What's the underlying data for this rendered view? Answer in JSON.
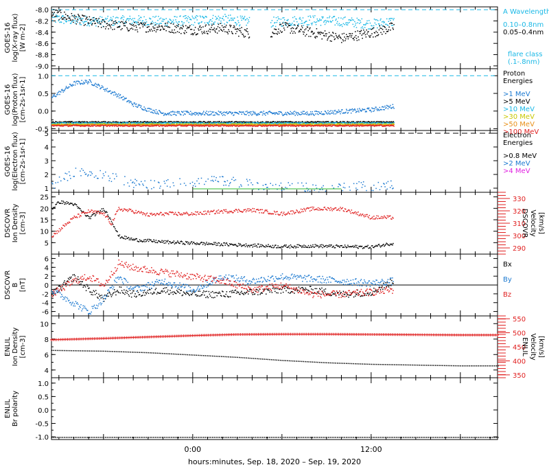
{
  "x_axis": {
    "label": "hours:minutes, Sep. 18, 2020 – Sep. 19, 2020",
    "ticks": [
      "0:00",
      "12:00"
    ],
    "tick_hours": [
      0,
      12
    ],
    "range_hours": [
      -9.5,
      20.5
    ]
  },
  "colors": {
    "black": "#000000",
    "blue": "#1a78d0",
    "cyan": "#19b8e6",
    "green": "#2eb82e",
    "yellow": "#c8c800",
    "orange": "#e89018",
    "red": "#e02020",
    "magenta": "#e020e0"
  },
  "panels": [
    {
      "id": "xray",
      "ylabel": [
        "GOES-16",
        "log(X-ray flux)",
        "[W m-2]"
      ],
      "yticks": [
        "-8.0",
        "-8.2",
        "-8.4",
        "-8.6",
        "-8.8",
        "-9.0"
      ],
      "ytick_values": [
        -8.0,
        -8.2,
        -8.4,
        -8.6,
        -8.8,
        -9.0
      ],
      "ylim": [
        -9.05,
        -7.95
      ],
      "legend_title": [
        "A Wavelength"
      ],
      "legend": [
        {
          "text": "0.10–0.8nm",
          "color": "cyan"
        },
        {
          "text": "0.05–0.4nm",
          "color": "black"
        }
      ],
      "legend2": [
        {
          "text": "flare class",
          "color": "cyan"
        },
        {
          "text": "(.1-.8nm)",
          "color": "cyan"
        }
      ],
      "hline": {
        "value": -8.0,
        "color": "cyan"
      }
    },
    {
      "id": "proton",
      "ylabel": [
        "GOES-16",
        "log(Proton flux)",
        "[cm-2s-1sr-1]"
      ],
      "yticks": [
        "1.0",
        "0.5",
        "0.0",
        "-0.5"
      ],
      "ytick_values": [
        1.0,
        0.5,
        0.0,
        -0.5
      ],
      "ylim": [
        -0.55,
        1.2
      ],
      "legend_title": [
        "Proton",
        "Energies"
      ],
      "legend": [
        {
          "text": ">1 MeV",
          "color": "blue"
        },
        {
          "text": ">5 MeV",
          "color": "black"
        },
        {
          "text": ">10 MeV",
          "color": "cyan"
        },
        {
          "text": ">30 MeV",
          "color": "yellow"
        },
        {
          "text": ">50 MeV",
          "color": "orange"
        },
        {
          "text": ">100 MeV",
          "color": "red"
        }
      ],
      "hline": {
        "value": 1.0,
        "color": "cyan"
      }
    },
    {
      "id": "electron",
      "ylabel": [
        "GOES-16",
        "log(Electron flux)",
        "[cm-2s-1sr-1]"
      ],
      "yticks": [
        "5",
        "4",
        "3",
        "2",
        "1"
      ],
      "ytick_values": [
        5,
        4,
        3,
        2,
        1
      ],
      "ylim": [
        0.7,
        5.2
      ],
      "legend_title": [
        "Electron",
        "Energies"
      ],
      "legend": [
        {
          "text": ">0.8 MeV",
          "color": "black"
        },
        {
          "text": ">2 MeV",
          "color": "blue"
        },
        {
          "text": ">4 MeV",
          "color": "magenta"
        }
      ],
      "hline": {
        "value": 5.0,
        "color": "black"
      }
    },
    {
      "id": "dscovr_density",
      "ylabel": [
        "DSCOVR",
        "Ion Density",
        "[cm-3]"
      ],
      "yticks": [
        "25",
        "20",
        "15",
        "10",
        "5"
      ],
      "ytick_values": [
        25,
        20,
        15,
        10,
        5
      ],
      "ylim": [
        0,
        27
      ],
      "ylabel_right": [
        "DSCOVR",
        "Velocity",
        "[km/s]"
      ],
      "yticks_right": [
        "330",
        "320",
        "310",
        "300",
        "290"
      ],
      "ytick_right_values": [
        330,
        320,
        310,
        300,
        290
      ],
      "ylim_right": [
        285,
        335
      ]
    },
    {
      "id": "dscovr_b",
      "ylabel": [
        "DSCOVR",
        "B",
        "[nT]"
      ],
      "yticks": [
        "6",
        "4",
        "2",
        "0",
        "-2",
        "-4",
        "-6"
      ],
      "ytick_values": [
        6,
        4,
        2,
        0,
        -2,
        -4,
        -6
      ],
      "ylim": [
        -7,
        7
      ],
      "legend": [
        {
          "text": "Bx",
          "color": "black"
        },
        {
          "text": "By",
          "color": "blue"
        },
        {
          "text": "Bz",
          "color": "red"
        }
      ],
      "hline": {
        "value": 0,
        "color": "black"
      }
    },
    {
      "id": "enlil_density",
      "ylabel": [
        "ENLIL",
        "Ion Density",
        "[cm-3]"
      ],
      "yticks": [
        "10",
        "8",
        "6",
        "4"
      ],
      "ytick_values": [
        10,
        8,
        6,
        4
      ],
      "ylim": [
        3,
        11
      ],
      "ylabel_right": [
        "ENLIL",
        "Velocity",
        "[km/s]"
      ],
      "yticks_right": [
        "550",
        "500",
        "450",
        "400",
        "350"
      ],
      "ytick_right_values": [
        550,
        500,
        450,
        400,
        350
      ],
      "ylim_right": [
        340,
        560
      ]
    },
    {
      "id": "enlil_polarity",
      "ylabel": [
        "ENLIL",
        "Br polarity"
      ],
      "yticks": [
        "1.0",
        "0.5",
        "0.0",
        "-0.5",
        "-1.0"
      ],
      "ytick_values": [
        1.0,
        0.5,
        0.0,
        -0.5,
        -1.0
      ],
      "ylim": [
        -1.1,
        1.2
      ]
    }
  ],
  "chart_data": [
    {
      "type": "scatter",
      "title": "",
      "ylabel": "GOES-16 log(X-ray flux) [W m-2]",
      "ylim": [
        -9.05,
        -7.95
      ],
      "series": [
        {
          "name": "0.10–0.8nm",
          "color": "cyan",
          "x": [
            -9.5,
            -8,
            -6,
            -4,
            -2,
            0,
            2,
            3.5,
            5,
            6,
            8,
            10,
            12,
            13.5
          ],
          "y": [
            -8.15,
            -8.18,
            -8.2,
            -8.18,
            -8.2,
            -8.18,
            -8.16,
            -8.2,
            -8.22,
            -8.2,
            -8.18,
            -8.2,
            -8.25,
            -8.2
          ]
        },
        {
          "name": "0.05–0.4nm",
          "color": "black",
          "x": [
            -9.5,
            -8,
            -6,
            -4,
            -2,
            0,
            2,
            3.5,
            5,
            6,
            8,
            10,
            12,
            13.5
          ],
          "y": [
            -8.05,
            -8.15,
            -8.25,
            -8.3,
            -8.3,
            -8.35,
            -8.32,
            -8.4,
            -8.45,
            -8.3,
            -8.4,
            -8.5,
            -8.4,
            -8.3
          ]
        }
      ]
    },
    {
      "type": "scatter",
      "title": "",
      "ylabel": "GOES-16 log(Proton flux) [cm-2s-1sr-1]",
      "ylim": [
        -0.55,
        1.2
      ],
      "series": [
        {
          "name": ">1 MeV",
          "color": "blue",
          "x": [
            -9.5,
            -8,
            -7,
            -6,
            -5,
            -4,
            -3,
            -2,
            0,
            2,
            4,
            6,
            8,
            10,
            12,
            13.5
          ],
          "y": [
            0.4,
            0.8,
            0.85,
            0.65,
            0.45,
            0.2,
            0.05,
            -0.05,
            -0.05,
            -0.05,
            -0.05,
            -0.05,
            -0.05,
            0,
            0.05,
            0.15
          ]
        },
        {
          "name": ">5 MeV",
          "color": "black",
          "x": [
            -9.5,
            0,
            13.5
          ],
          "y": [
            -0.3,
            -0.3,
            -0.3
          ]
        },
        {
          "name": ">10 MeV",
          "color": "cyan",
          "x": [
            -9.5,
            0,
            13.5
          ],
          "y": [
            -0.33,
            -0.33,
            -0.33
          ]
        },
        {
          "name": ">30 MeV",
          "color": "yellow",
          "x": [
            -9.5,
            0,
            13.5
          ],
          "y": [
            -0.36,
            -0.36,
            -0.36
          ]
        },
        {
          "name": ">50 MeV",
          "color": "orange",
          "x": [
            -9.5,
            0,
            13.5
          ],
          "y": [
            -0.38,
            -0.38,
            -0.38
          ]
        },
        {
          "name": ">100 MeV",
          "color": "red",
          "x": [
            -9.5,
            0,
            13.5
          ],
          "y": [
            -0.4,
            -0.4,
            -0.4
          ]
        }
      ]
    },
    {
      "type": "scatter",
      "title": "",
      "ylabel": "GOES-16 log(Electron flux) [cm-2s-1sr-1]",
      "ylim": [
        0.7,
        5.2
      ],
      "series": [
        {
          "name": ">0.8 MeV",
          "color": "black",
          "x": [],
          "y": []
        },
        {
          "name": ">2 MeV",
          "color": "blue",
          "x": [
            -9.5,
            -8,
            -6,
            -4,
            -2,
            0,
            2,
            4,
            6,
            8,
            10,
            12,
            13.5
          ],
          "y": [
            1.2,
            2.2,
            2.0,
            1.4,
            1.3,
            1.5,
            1.6,
            1.3,
            1.2,
            1.1,
            1.1,
            1.2,
            1.3
          ]
        },
        {
          "name": ">4 MeV",
          "color": "magenta",
          "x": [],
          "y": []
        }
      ]
    },
    {
      "type": "line",
      "title": "",
      "ylabel": "DSCOVR Ion Density [cm-3]",
      "ylim": [
        0,
        27
      ],
      "series": [
        {
          "name": "Ion Density",
          "color": "black",
          "x": [
            -9.5,
            -9,
            -8,
            -7,
            -6,
            -5.5,
            -5,
            -4,
            -3,
            -2,
            0,
            2,
            4,
            6,
            8,
            10,
            12,
            13.5
          ],
          "y": [
            20,
            23,
            22,
            16,
            20,
            15,
            8,
            6.5,
            6,
            5.5,
            5,
            4.5,
            4,
            3.5,
            3.8,
            3.5,
            3.3,
            5
          ]
        },
        {
          "name": "Velocity",
          "color": "red",
          "axis": "right",
          "x": [
            -9.5,
            -9,
            -8,
            -7,
            -6,
            -5.5,
            -5,
            -4,
            -3,
            -2,
            0,
            2,
            4,
            6,
            8,
            10,
            12,
            13.5
          ],
          "y": [
            300,
            305,
            315,
            320,
            318,
            310,
            322,
            320,
            317,
            318,
            318,
            320,
            321,
            318,
            322,
            322,
            315,
            315
          ]
        }
      ]
    },
    {
      "type": "line",
      "title": "",
      "ylabel": "DSCOVR B [nT]",
      "ylim": [
        -7,
        7
      ],
      "series": [
        {
          "name": "Bx",
          "color": "black",
          "x": [
            -9.5,
            -8,
            -7,
            -6,
            -5,
            -4,
            -2,
            0,
            2,
            4,
            6,
            8,
            10,
            12,
            13.5
          ],
          "y": [
            -2,
            2,
            -1,
            -3,
            -1,
            -2,
            -1,
            -2,
            -2,
            -1.5,
            -1,
            -1,
            -2,
            -1.5,
            1
          ]
        },
        {
          "name": "By",
          "color": "blue",
          "x": [
            -9.5,
            -8,
            -7,
            -6,
            -5,
            -4,
            -2,
            0,
            2,
            4,
            6,
            8,
            10,
            12,
            13.5
          ],
          "y": [
            -1,
            -4,
            -6,
            -3,
            2,
            -1,
            1,
            -1,
            2,
            1,
            2,
            1.5,
            1,
            0.5,
            1
          ]
        },
        {
          "name": "Bz",
          "color": "red",
          "x": [
            -9.5,
            -8,
            -7,
            -6,
            -5,
            -4,
            -2,
            0,
            2,
            4,
            6,
            8,
            10,
            12,
            13.5
          ],
          "y": [
            -2,
            1,
            2,
            0,
            5,
            4,
            3,
            2,
            1,
            -1,
            0,
            -2,
            -2,
            -1.5,
            -1
          ]
        }
      ]
    },
    {
      "type": "line",
      "title": "",
      "ylabel": "ENLIL Ion Density [cm-3]",
      "ylim": [
        3,
        11
      ],
      "series": [
        {
          "name": "Ion Density",
          "color": "black",
          "x": [
            -9.5,
            -6,
            -3,
            0,
            3,
            6,
            9,
            12,
            15,
            18,
            20.5
          ],
          "y": [
            6.6,
            6.5,
            6.3,
            6.0,
            5.7,
            5.3,
            5.0,
            4.8,
            4.7,
            4.6,
            4.6
          ]
        },
        {
          "name": "Velocity",
          "color": "red",
          "axis": "right",
          "x": [
            -9.5,
            -6,
            -3,
            0,
            3,
            6,
            9,
            12,
            15,
            18,
            20.5
          ],
          "y": [
            475,
            480,
            485,
            490,
            494,
            495,
            495,
            494,
            493,
            492,
            492
          ]
        }
      ]
    },
    {
      "type": "line",
      "title": "",
      "ylabel": "ENLIL Br polarity",
      "ylim": [
        -1.1,
        1.2
      ],
      "series": [
        {
          "name": "Br polarity",
          "color": "black",
          "x": [
            -9.5,
            20.5
          ],
          "y": [
            -1.0,
            -1.0
          ]
        }
      ]
    }
  ]
}
